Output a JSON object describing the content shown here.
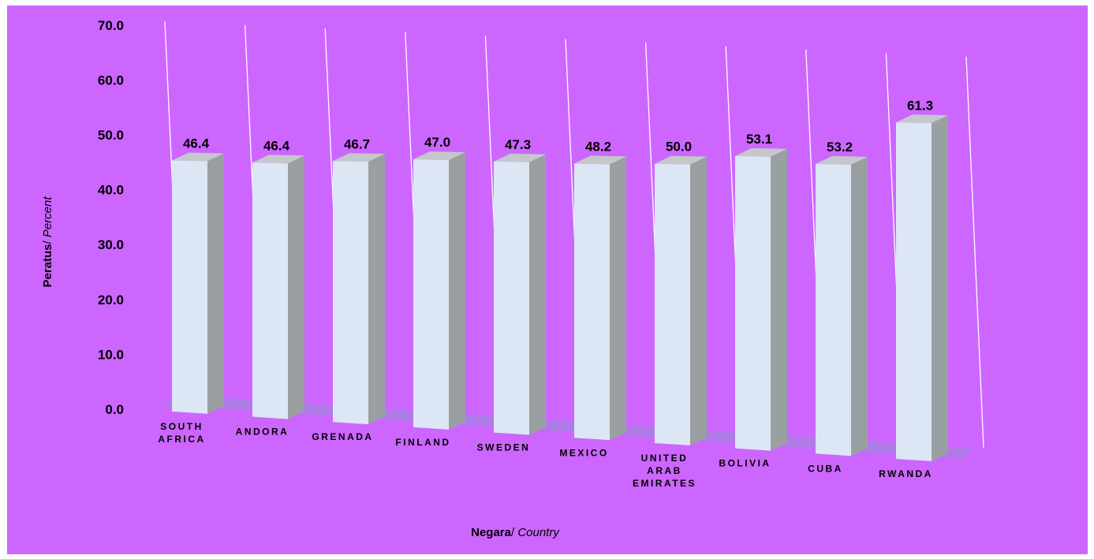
{
  "chart_data": {
    "type": "bar",
    "categories": [
      "SOUTH AFRICA",
      "ANDORA",
      "GRENADA",
      "FINLAND",
      "SWEDEN",
      "MEXICO",
      "UNITED ARAB EMIRATES",
      "BOLIVIA",
      "CUBA",
      "RWANDA"
    ],
    "category_lines": [
      [
        "SOUTH",
        "AFRICA"
      ],
      [
        "ANDORA"
      ],
      [
        "GRENADA"
      ],
      [
        "FINLAND"
      ],
      [
        "SWEDEN"
      ],
      [
        "MEXICO"
      ],
      [
        "UNITED",
        "ARAB",
        "EMIRATES"
      ],
      [
        "BOLIVIA"
      ],
      [
        "CUBA"
      ],
      [
        "RWANDA"
      ]
    ],
    "values": [
      46.4,
      46.4,
      46.7,
      47.0,
      47.3,
      48.2,
      50.0,
      53.1,
      53.2,
      61.3
    ],
    "value_labels": [
      "46.4",
      "46.4",
      "46.7",
      "47.0",
      "47.3",
      "48.2",
      "50.0",
      "53.1",
      "53.2",
      "61.3"
    ],
    "yticks": [
      "0.0",
      "10.0",
      "20.0",
      "30.0",
      "40.0",
      "50.0",
      "60.0",
      "70.0"
    ],
    "ylim": [
      0,
      70
    ],
    "xlabel": {
      "bold": "Negara",
      "italic": " Country",
      "sep": "/"
    },
    "ylabel": {
      "bold": "Peratus",
      "italic": " Percent",
      "sep": "/"
    },
    "grid": true,
    "bar_front_color": "#dde6f4",
    "bar_side_color": "#9aa0a2",
    "bar_top_color": "#c4c8ca",
    "floor_color": "#b07ae8",
    "background_color": "#cc66ff"
  }
}
